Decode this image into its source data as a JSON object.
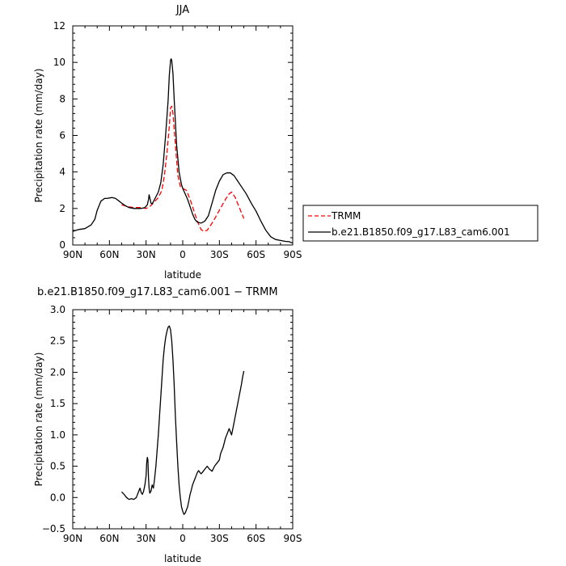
{
  "chart_data": [
    {
      "type": "line",
      "title": "JJA",
      "xlabel": "latitude",
      "ylabel": "Precipitation rate (mm/day)",
      "xlim": [
        90,
        -90
      ],
      "ylim": [
        0,
        12
      ],
      "xticks": [
        {
          "v": 90,
          "label": "90N"
        },
        {
          "v": 60,
          "label": "60N"
        },
        {
          "v": 30,
          "label": "30N"
        },
        {
          "v": 0,
          "label": "0"
        },
        {
          "v": -30,
          "label": "30S"
        },
        {
          "v": -60,
          "label": "60S"
        },
        {
          "v": -90,
          "label": "90S"
        }
      ],
      "yticks": [
        {
          "v": 0,
          "label": "0"
        },
        {
          "v": 2,
          "label": "2"
        },
        {
          "v": 4,
          "label": "4"
        },
        {
          "v": 6,
          "label": "6"
        },
        {
          "v": 8,
          "label": "8"
        },
        {
          "v": 10,
          "label": "10"
        },
        {
          "v": 12,
          "label": "12"
        }
      ],
      "legend_position": "right, outside plot",
      "series": [
        {
          "name": "TRMM",
          "color": "#ff0000",
          "dash": "dashed",
          "points": [
            [
              50,
              2.2
            ],
            [
              45,
              2.1
            ],
            [
              40,
              2.05
            ],
            [
              35,
              2.05
            ],
            [
              30,
              2.0
            ],
            [
              27,
              2.1
            ],
            [
              24,
              2.3
            ],
            [
              20,
              2.6
            ],
            [
              17,
              3.0
            ],
            [
              15,
              3.8
            ],
            [
              13,
              5.0
            ],
            [
              11,
              6.5
            ],
            [
              10,
              7.5
            ],
            [
              9,
              7.6
            ],
            [
              8,
              7.2
            ],
            [
              6,
              5.5
            ],
            [
              4,
              3.8
            ],
            [
              2,
              3.2
            ],
            [
              0,
              3.1
            ],
            [
              -3,
              3.0
            ],
            [
              -6,
              2.5
            ],
            [
              -9,
              1.9
            ],
            [
              -12,
              1.3
            ],
            [
              -15,
              0.85
            ],
            [
              -17,
              0.75
            ],
            [
              -20,
              0.8
            ],
            [
              -25,
              1.3
            ],
            [
              -30,
              1.9
            ],
            [
              -35,
              2.5
            ],
            [
              -38,
              2.8
            ],
            [
              -40,
              2.9
            ],
            [
              -43,
              2.6
            ],
            [
              -46,
              2.1
            ],
            [
              -50,
              1.45
            ]
          ]
        },
        {
          "name": "b.e21.B1850.f09_g17.L83_cam6.001",
          "color": "#000000",
          "dash": "solid",
          "points": [
            [
              90,
              0.75
            ],
            [
              85,
              0.85
            ],
            [
              80,
              0.9
            ],
            [
              75,
              1.1
            ],
            [
              72,
              1.4
            ],
            [
              70,
              1.9
            ],
            [
              67,
              2.4
            ],
            [
              64,
              2.55
            ],
            [
              62,
              2.55
            ],
            [
              58,
              2.6
            ],
            [
              55,
              2.55
            ],
            [
              52,
              2.4
            ],
            [
              50,
              2.3
            ],
            [
              47,
              2.15
            ],
            [
              44,
              2.05
            ],
            [
              40,
              2.0
            ],
            [
              37,
              2.0
            ],
            [
              34,
              2.0
            ],
            [
              31,
              2.05
            ],
            [
              29,
              2.2
            ],
            [
              28,
              2.5
            ],
            [
              27.5,
              2.75
            ],
            [
              27,
              2.6
            ],
            [
              26,
              2.3
            ],
            [
              25,
              2.25
            ],
            [
              23,
              2.5
            ],
            [
              20,
              2.9
            ],
            [
              18,
              3.4
            ],
            [
              16,
              4.4
            ],
            [
              14,
              6.0
            ],
            [
              12,
              7.9
            ],
            [
              11,
              9.3
            ],
            [
              10,
              10.1
            ],
            [
              9.5,
              10.2
            ],
            [
              9,
              10.1
            ],
            [
              8,
              9.4
            ],
            [
              7,
              8.0
            ],
            [
              5,
              5.5
            ],
            [
              3,
              4.0
            ],
            [
              1,
              3.3
            ],
            [
              0,
              3.1
            ],
            [
              -2,
              2.8
            ],
            [
              -4,
              2.5
            ],
            [
              -6,
              2.1
            ],
            [
              -8,
              1.7
            ],
            [
              -10,
              1.4
            ],
            [
              -12,
              1.25
            ],
            [
              -15,
              1.2
            ],
            [
              -18,
              1.3
            ],
            [
              -21,
              1.6
            ],
            [
              -24,
              2.3
            ],
            [
              -27,
              3.0
            ],
            [
              -30,
              3.5
            ],
            [
              -33,
              3.85
            ],
            [
              -36,
              3.95
            ],
            [
              -39,
              3.95
            ],
            [
              -42,
              3.8
            ],
            [
              -45,
              3.5
            ],
            [
              -48,
              3.2
            ],
            [
              -52,
              2.8
            ],
            [
              -56,
              2.3
            ],
            [
              -60,
              1.85
            ],
            [
              -64,
              1.3
            ],
            [
              -68,
              0.8
            ],
            [
              -72,
              0.45
            ],
            [
              -76,
              0.3
            ],
            [
              -80,
              0.25
            ],
            [
              -84,
              0.2
            ],
            [
              -87,
              0.18
            ],
            [
              -90,
              0.1
            ]
          ]
        }
      ]
    },
    {
      "type": "line",
      "title": "b.e21.B1850.f09_g17.L83_cam6.001 − TRMM",
      "xlabel": "latitude",
      "ylabel": "Precipitation rate (mm/day)",
      "xlim": [
        90,
        -90
      ],
      "ylim": [
        -0.5,
        3.0
      ],
      "xticks": [
        {
          "v": 90,
          "label": "90N"
        },
        {
          "v": 60,
          "label": "60N"
        },
        {
          "v": 30,
          "label": "30N"
        },
        {
          "v": 0,
          "label": "0"
        },
        {
          "v": -30,
          "label": "30S"
        },
        {
          "v": -60,
          "label": "60S"
        },
        {
          "v": -90,
          "label": "90S"
        }
      ],
      "yticks": [
        {
          "v": -0.5,
          "label": "−0.5"
        },
        {
          "v": 0.0,
          "label": "0.0"
        },
        {
          "v": 0.5,
          "label": "0.5"
        },
        {
          "v": 1.0,
          "label": "1.0"
        },
        {
          "v": 1.5,
          "label": "1.5"
        },
        {
          "v": 2.0,
          "label": "2.0"
        },
        {
          "v": 2.5,
          "label": "2.5"
        },
        {
          "v": 3.0,
          "label": "3.0"
        }
      ],
      "series": [
        {
          "color": "#000000",
          "dash": "solid",
          "points": [
            [
              50,
              0.09
            ],
            [
              48,
              0.05
            ],
            [
              46,
              0.0
            ],
            [
              44,
              -0.03
            ],
            [
              42,
              -0.02
            ],
            [
              40,
              -0.03
            ],
            [
              38,
              0.0
            ],
            [
              36,
              0.1
            ],
            [
              35,
              0.15
            ],
            [
              34,
              0.08
            ],
            [
              33,
              0.05
            ],
            [
              32,
              0.1
            ],
            [
              31,
              0.2
            ],
            [
              30,
              0.35
            ],
            [
              29.5,
              0.55
            ],
            [
              29,
              0.64
            ],
            [
              28.5,
              0.6
            ],
            [
              28,
              0.3
            ],
            [
              27.5,
              0.15
            ],
            [
              27,
              0.07
            ],
            [
              26,
              0.1
            ],
            [
              25,
              0.2
            ],
            [
              24,
              0.15
            ],
            [
              23,
              0.3
            ],
            [
              22,
              0.5
            ],
            [
              21,
              0.75
            ],
            [
              20,
              1.0
            ],
            [
              19,
              1.3
            ],
            [
              18,
              1.6
            ],
            [
              17,
              1.9
            ],
            [
              16,
              2.2
            ],
            [
              15,
              2.4
            ],
            [
              14,
              2.55
            ],
            [
              13,
              2.65
            ],
            [
              12,
              2.72
            ],
            [
              11,
              2.74
            ],
            [
              10,
              2.68
            ],
            [
              9,
              2.5
            ],
            [
              8,
              2.2
            ],
            [
              7,
              1.8
            ],
            [
              6,
              1.3
            ],
            [
              5,
              0.9
            ],
            [
              4,
              0.5
            ],
            [
              3,
              0.2
            ],
            [
              2,
              0.0
            ],
            [
              1,
              -0.15
            ],
            [
              0,
              -0.22
            ],
            [
              -1,
              -0.27
            ],
            [
              -2,
              -0.25
            ],
            [
              -3,
              -0.2
            ],
            [
              -4,
              -0.15
            ],
            [
              -5,
              -0.05
            ],
            [
              -6,
              0.05
            ],
            [
              -7,
              0.12
            ],
            [
              -8,
              0.2
            ],
            [
              -9,
              0.25
            ],
            [
              -10,
              0.3
            ],
            [
              -11,
              0.35
            ],
            [
              -12,
              0.4
            ],
            [
              -13,
              0.43
            ],
            [
              -14,
              0.4
            ],
            [
              -15,
              0.38
            ],
            [
              -16,
              0.4
            ],
            [
              -18,
              0.45
            ],
            [
              -20,
              0.5
            ],
            [
              -22,
              0.45
            ],
            [
              -24,
              0.42
            ],
            [
              -26,
              0.5
            ],
            [
              -28,
              0.55
            ],
            [
              -30,
              0.6
            ],
            [
              -31,
              0.7
            ],
            [
              -33,
              0.8
            ],
            [
              -35,
              0.95
            ],
            [
              -37,
              1.05
            ],
            [
              -38,
              1.1
            ],
            [
              -39,
              1.05
            ],
            [
              -40,
              1.0
            ],
            [
              -41,
              1.1
            ],
            [
              -42,
              1.2
            ],
            [
              -43,
              1.3
            ],
            [
              -44,
              1.4
            ],
            [
              -45,
              1.5
            ],
            [
              -46,
              1.6
            ],
            [
              -47,
              1.7
            ],
            [
              -48,
              1.8
            ],
            [
              -49,
              1.92
            ],
            [
              -50,
              2.02
            ]
          ]
        }
      ]
    }
  ]
}
